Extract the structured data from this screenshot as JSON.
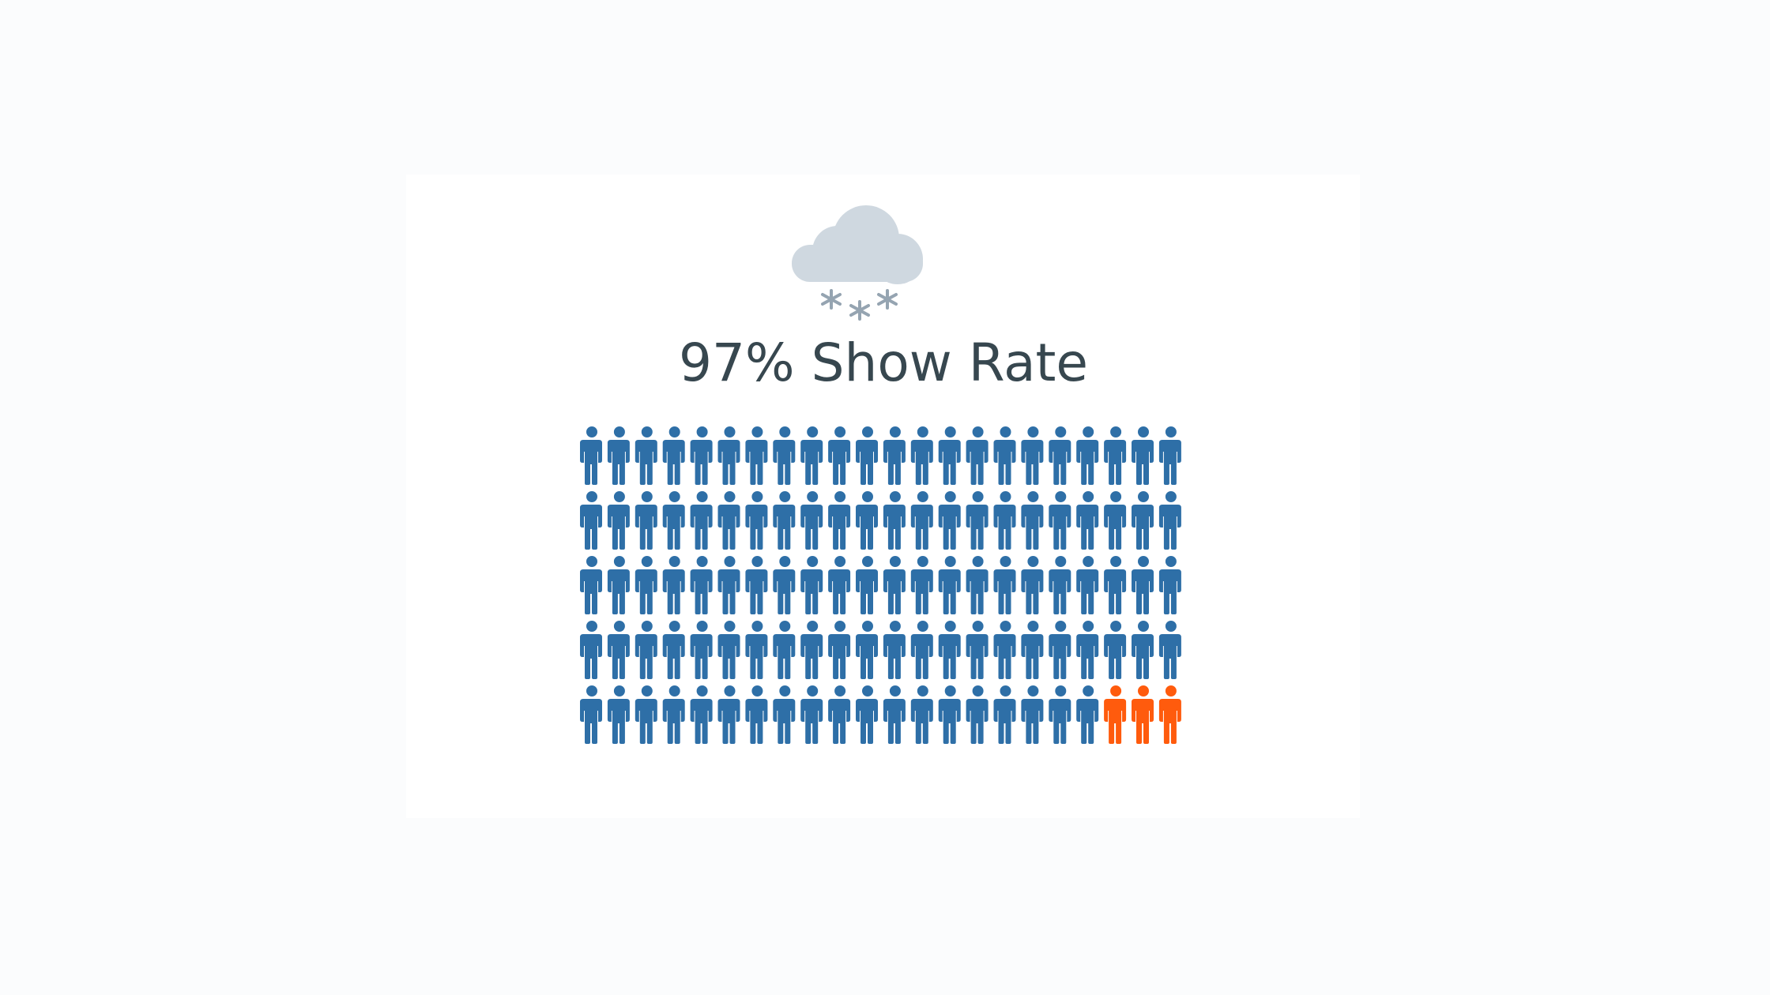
{
  "chart_data": {
    "type": "pictograph",
    "title": "97% Show Rate",
    "values": [
      107,
      3
    ],
    "colors": [
      "#2e6fa7",
      "#ff5b0d"
    ],
    "columns": 22
  }
}
